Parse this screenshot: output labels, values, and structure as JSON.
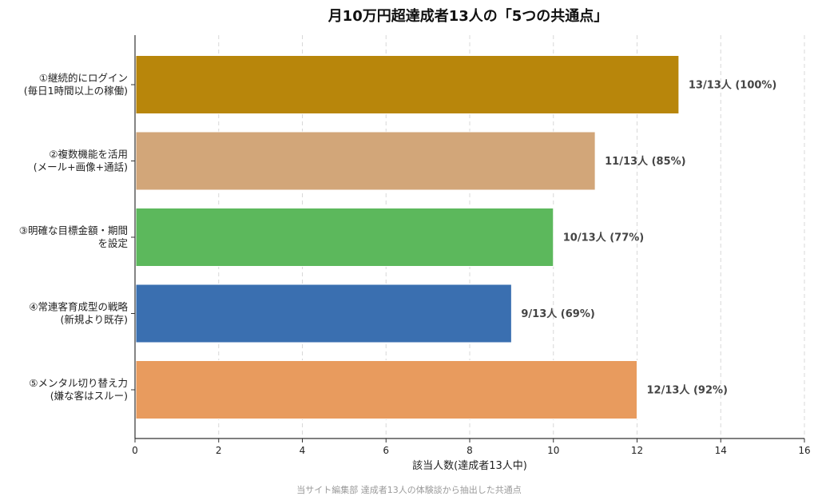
{
  "chart_data": {
    "type": "bar",
    "orientation": "horizontal",
    "title": "月10万円超達成者13人の「5つの共通点」",
    "xlabel": "該当人数(達成者13人中)",
    "ylabel": "",
    "xlim": [
      0,
      16
    ],
    "xticks": [
      0,
      2,
      4,
      6,
      8,
      10,
      12,
      14,
      16
    ],
    "grid": "vertical-dashed",
    "categories": [
      [
        "①継続的にログイン",
        "(毎日1時間以上の稼働)"
      ],
      [
        "②複数機能を活用",
        "(メール+画像+通話)"
      ],
      [
        "③明確な目標金額・期間",
        "を設定"
      ],
      [
        "④常連客育成型の戦略",
        "(新規より既存)"
      ],
      [
        "⑤メンタル切り替え力",
        "(嫌な客はスルー)"
      ]
    ],
    "values": [
      13,
      11,
      10,
      9,
      12
    ],
    "value_labels": [
      "13/13人 (100%)",
      "11/13人 (85%)",
      "10/13人 (77%)",
      "9/13人 (69%)",
      "12/13人 (92%)"
    ],
    "colors": [
      "#b8860b",
      "#d2a679",
      "#5cb85c",
      "#3a6fb0",
      "#e89b5e"
    ],
    "footnote": "当サイト編集部 達成者13人の体験談から抽出した共通点"
  }
}
